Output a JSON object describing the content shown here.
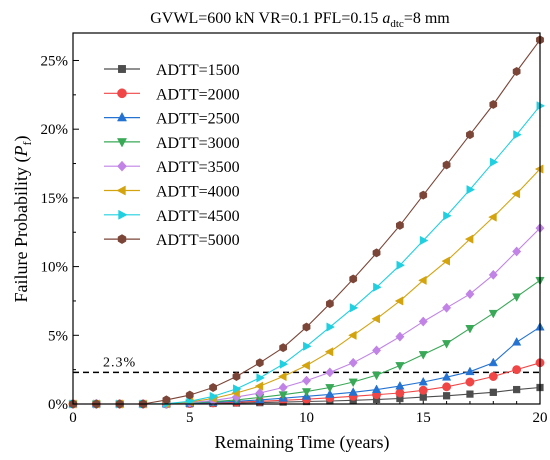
{
  "chart_data": {
    "type": "line",
    "title_parts": {
      "main": "GVWL=600 kN  VR=0.1  PFL=0.15  ",
      "a_letter": "a",
      "a_sub": "dtc",
      "tail": "=8 mm"
    },
    "xlabel": "Remaining Time (years)",
    "ylabel_parts": {
      "prefix": "Failure Probability (",
      "p": "P",
      "sub": "f",
      "suffix": ")"
    },
    "xlim": [
      0,
      20
    ],
    "ylim": [
      0,
      0.27
    ],
    "x_ticks": [
      0,
      5,
      10,
      15,
      20
    ],
    "x_tick_labels": [
      "0",
      "5",
      "10",
      "15",
      "20"
    ],
    "y_ticks": [
      0,
      0.05,
      0.1,
      0.15,
      0.2,
      0.25
    ],
    "y_tick_labels": [
      "0%",
      "5%",
      "10%",
      "15%",
      "20%",
      "25%"
    ],
    "x": [
      0,
      1,
      2,
      3,
      4,
      5,
      6,
      7,
      8,
      9,
      10,
      11,
      12,
      13,
      14,
      15,
      16,
      17,
      18,
      19,
      20
    ],
    "threshold": {
      "value": 0.023,
      "label": "2.3%"
    },
    "legend_position": "top-left",
    "grid": false,
    "series": [
      {
        "name": "ADTT=1500",
        "color": "#4d4d4d",
        "marker": "square",
        "values": [
          0,
          0,
          0,
          0,
          0,
          0.0002,
          0.0004,
          0.0007,
          0.001,
          0.0014,
          0.0018,
          0.0022,
          0.0027,
          0.0033,
          0.004,
          0.005,
          0.006,
          0.0072,
          0.0085,
          0.0105,
          0.012
        ]
      },
      {
        "name": "ADTT=2000",
        "color": "#f04646",
        "marker": "circle",
        "values": [
          0,
          0,
          0,
          0,
          0,
          0.0003,
          0.0008,
          0.0013,
          0.002,
          0.0027,
          0.0035,
          0.0045,
          0.0056,
          0.0068,
          0.008,
          0.01,
          0.0125,
          0.016,
          0.02,
          0.025,
          0.03
        ]
      },
      {
        "name": "ADTT=2500",
        "color": "#2473d2",
        "marker": "triangle-up",
        "values": [
          0,
          0,
          0,
          0,
          0,
          0.0005,
          0.0012,
          0.002,
          0.003,
          0.0042,
          0.0056,
          0.007,
          0.0085,
          0.0105,
          0.013,
          0.016,
          0.0195,
          0.0235,
          0.03,
          0.045,
          0.056
        ]
      },
      {
        "name": "ADTT=3000",
        "color": "#39a857",
        "marker": "triangle-down",
        "values": [
          0,
          0,
          0,
          0,
          0,
          0.0007,
          0.0017,
          0.003,
          0.0048,
          0.0068,
          0.009,
          0.012,
          0.016,
          0.021,
          0.028,
          0.036,
          0.044,
          0.055,
          0.066,
          0.078,
          0.09
        ]
      },
      {
        "name": "ADTT=3500",
        "color": "#c184e6",
        "marker": "diamond",
        "values": [
          0,
          0,
          0,
          0,
          0.0001,
          0.001,
          0.0025,
          0.005,
          0.008,
          0.012,
          0.017,
          0.023,
          0.03,
          0.039,
          0.049,
          0.06,
          0.07,
          0.08,
          0.094,
          0.111,
          0.128
        ]
      },
      {
        "name": "ADTT=4000",
        "color": "#d4a40f",
        "marker": "triangle-left",
        "values": [
          0,
          0,
          0,
          0,
          0.0001,
          0.0015,
          0.004,
          0.008,
          0.013,
          0.02,
          0.028,
          0.038,
          0.05,
          0.062,
          0.075,
          0.09,
          0.104,
          0.12,
          0.136,
          0.153,
          0.171
        ]
      },
      {
        "name": "ADTT=4500",
        "color": "#20d0e0",
        "marker": "triangle-right",
        "values": [
          0,
          0,
          0,
          0,
          0.0002,
          0.002,
          0.0055,
          0.011,
          0.019,
          0.029,
          0.042,
          0.056,
          0.07,
          0.085,
          0.101,
          0.119,
          0.137,
          0.156,
          0.176,
          0.196,
          0.217
        ]
      },
      {
        "name": "ADTT=5000",
        "color": "#7b4537",
        "marker": "hexagon",
        "values": [
          0,
          0,
          0,
          0,
          0.003,
          0.0065,
          0.012,
          0.02,
          0.03,
          0.041,
          0.056,
          0.073,
          0.091,
          0.11,
          0.13,
          0.152,
          0.174,
          0.196,
          0.218,
          0.242,
          0.265
        ]
      }
    ]
  }
}
